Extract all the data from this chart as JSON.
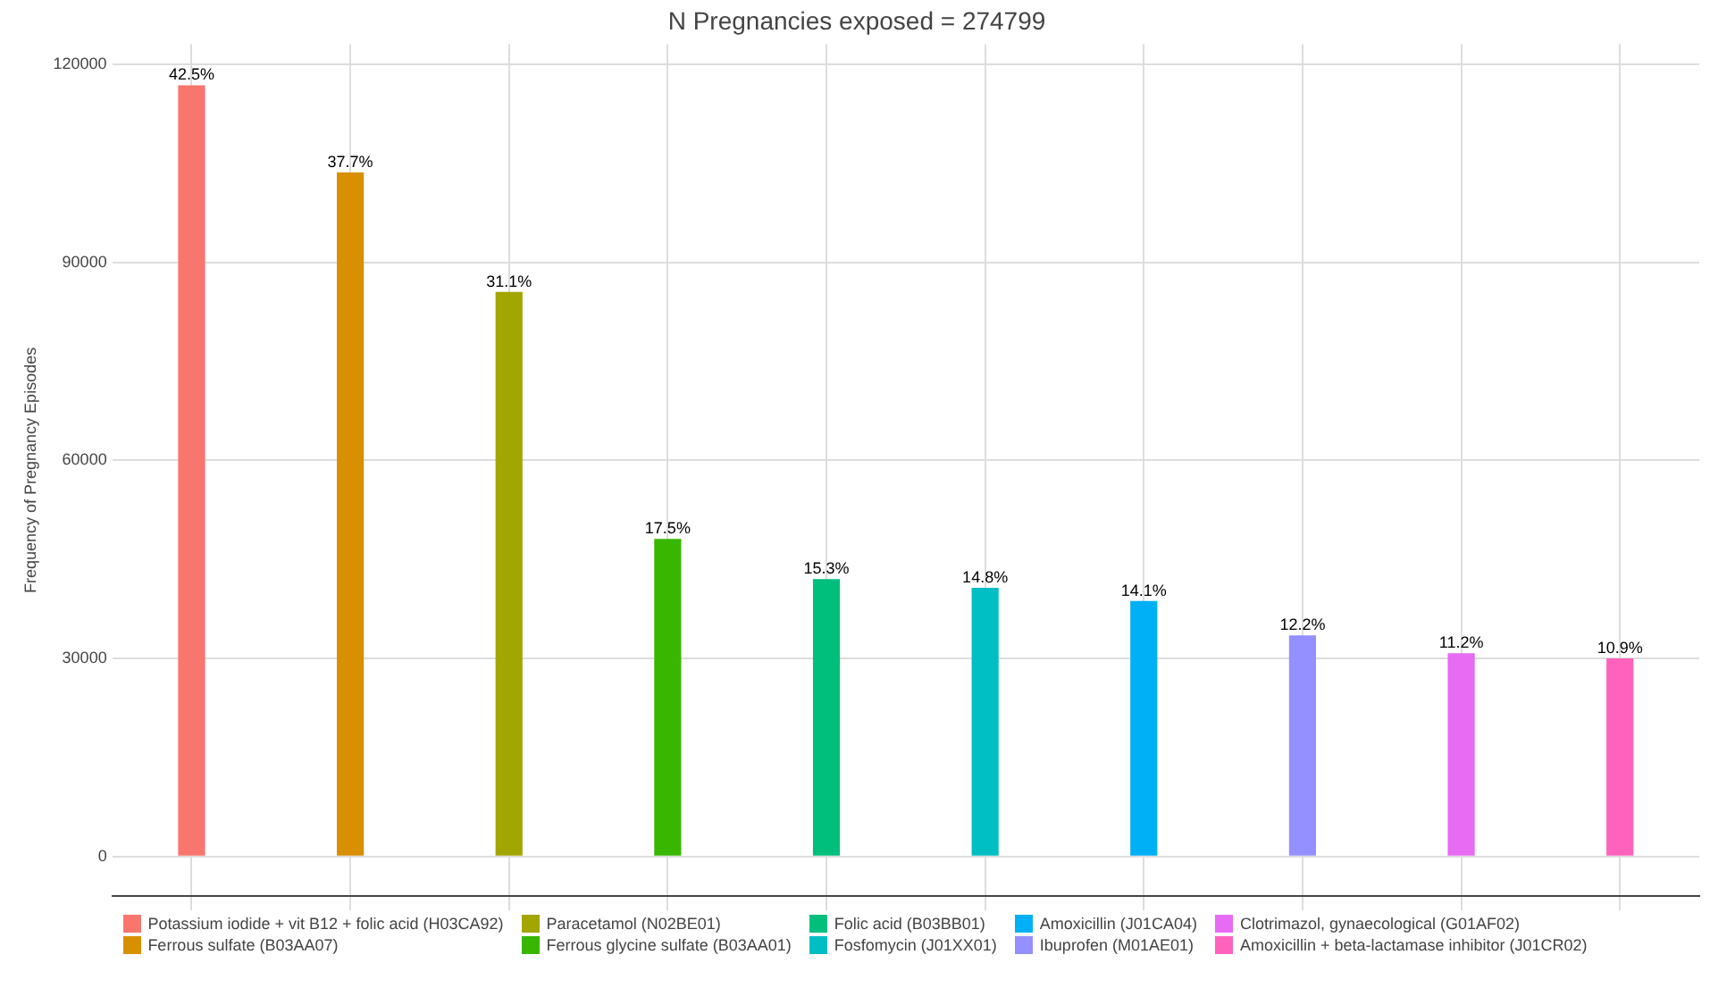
{
  "chart_data": {
    "type": "bar",
    "title": "N Pregnancies exposed = 274799",
    "ylabel": "Frequency of Pregnancy Episodes",
    "categories": [
      null,
      null,
      null,
      null,
      null,
      null,
      null,
      null,
      null,
      null
    ],
    "ylim": [
      -6000,
      123000
    ],
    "yticks": [
      0,
      30000,
      60000,
      90000,
      120000
    ],
    "grid": true,
    "legend": "bottom",
    "tick_labels": "y",
    "annotations": [
      {
        "text": "42.5%",
        "y": 116800
      },
      {
        "text": "37.7%",
        "y": 103600
      },
      {
        "text": "31.1%",
        "y": 85500
      },
      {
        "text": "17.5%",
        "y": 48100
      },
      {
        "text": "15.3%",
        "y": 42000
      },
      {
        "text": "14.8%",
        "y": 40700
      },
      {
        "text": "14.1%",
        "y": 38700
      },
      {
        "text": "12.2%",
        "y": 33500
      },
      {
        "text": "11.2%",
        "y": 30800
      },
      {
        "text": "10.9%",
        "y": 30000
      }
    ],
    "series": [
      {
        "name": "Potassium iodide + vit B12 + folic acid (H03CA92)",
        "color": "#f8766d",
        "values": [
          116800,
          null,
          null,
          null,
          null,
          null,
          null,
          null,
          null,
          null
        ]
      },
      {
        "name": "Ferrous sulfate (B03AA07)",
        "color": "#d89000",
        "values": [
          null,
          103600,
          null,
          null,
          null,
          null,
          null,
          null,
          null,
          null
        ]
      },
      {
        "name": "Paracetamol (N02BE01)",
        "color": "#a3a500",
        "values": [
          null,
          null,
          85500,
          null,
          null,
          null,
          null,
          null,
          null,
          null
        ]
      },
      {
        "name": "Ferrous glycine sulfate (B03AA01)",
        "color": "#39b600",
        "values": [
          null,
          null,
          null,
          48100,
          null,
          null,
          null,
          null,
          null,
          null
        ]
      },
      {
        "name": "Folic acid (B03BB01)",
        "color": "#00bf7d",
        "values": [
          null,
          null,
          null,
          null,
          42000,
          null,
          null,
          null,
          null,
          null
        ]
      },
      {
        "name": "Fosfomycin (J01XX01)",
        "color": "#00bfc4",
        "values": [
          null,
          null,
          null,
          null,
          null,
          40700,
          null,
          null,
          null,
          null
        ]
      },
      {
        "name": "Amoxicillin (J01CA04)",
        "color": "#00b0f6",
        "values": [
          null,
          null,
          null,
          null,
          null,
          null,
          38700,
          null,
          null,
          null
        ]
      },
      {
        "name": "Ibuprofen (M01AE01)",
        "color": "#9590ff",
        "values": [
          null,
          null,
          null,
          null,
          null,
          null,
          null,
          33500,
          null,
          null
        ]
      },
      {
        "name": "Clotrimazol, gynaecological (G01AF02)",
        "color": "#e76bf3",
        "values": [
          null,
          null,
          null,
          null,
          null,
          null,
          null,
          null,
          30800,
          null
        ]
      },
      {
        "name": "Amoxicillin + beta-lactamase inhibitor (J01CR02)",
        "color": "#ff62bc",
        "values": [
          null,
          null,
          null,
          null,
          null,
          null,
          null,
          null,
          null,
          30000
        ]
      }
    ]
  }
}
